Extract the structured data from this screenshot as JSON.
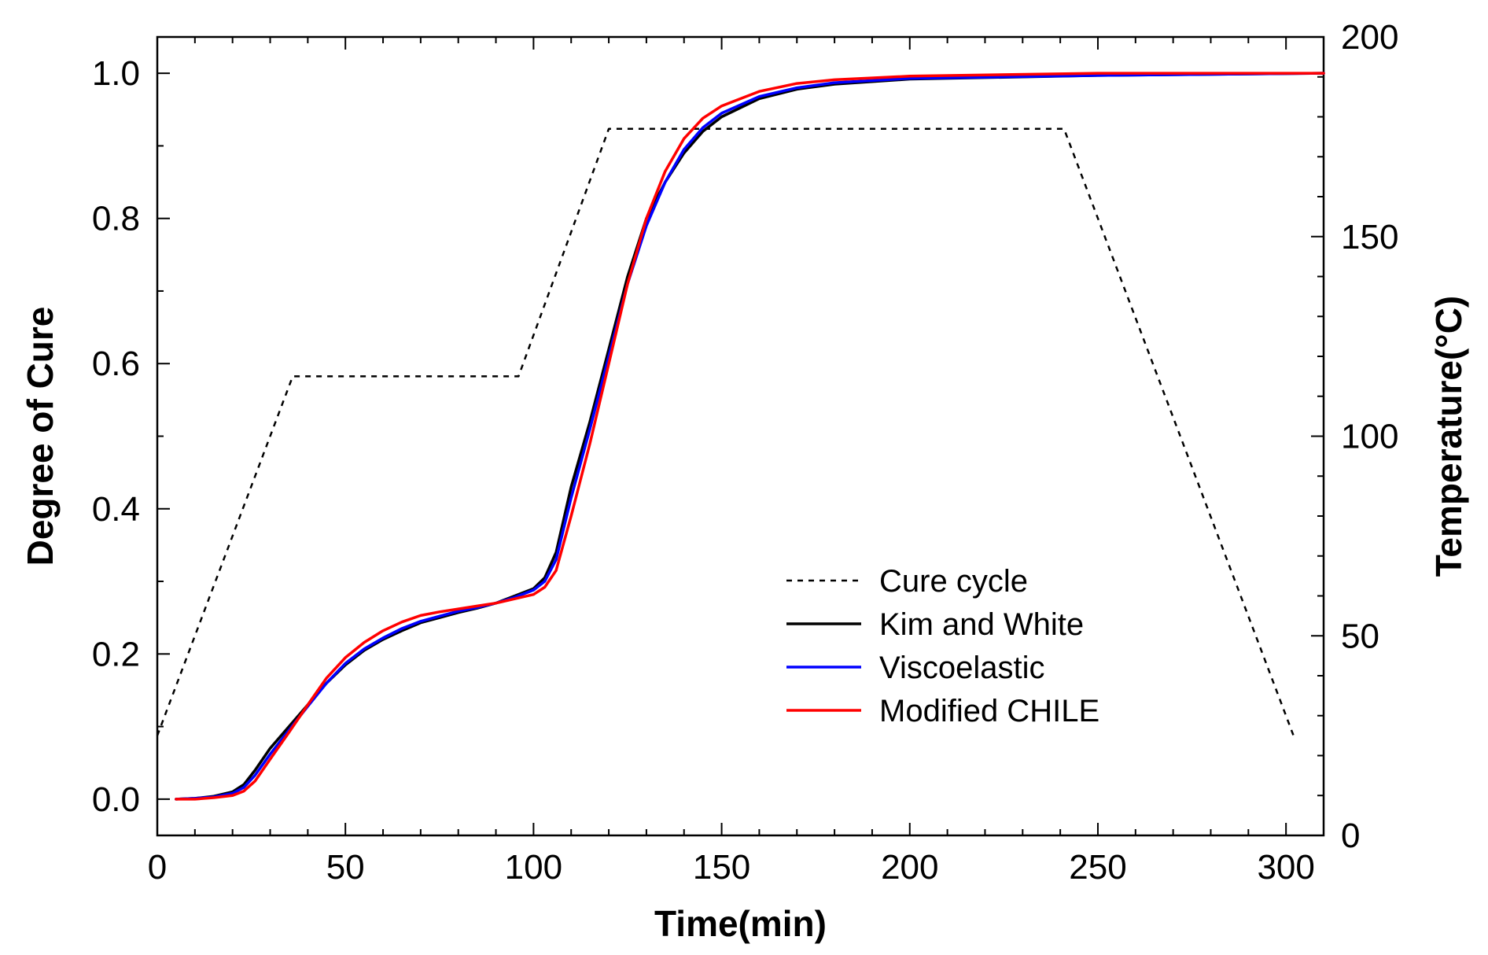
{
  "chart_data": {
    "type": "line",
    "title": "",
    "xlabel": "Time(min)",
    "ylabel": "Degree of Cure",
    "y2label": "Temperature(°C)",
    "xlim": [
      0,
      310
    ],
    "ylim": [
      -0.05,
      1.05
    ],
    "y2lim": [
      0,
      200
    ],
    "xticks": [
      0,
      50,
      100,
      150,
      200,
      250,
      300
    ],
    "xtick_labels": [
      "0",
      "50",
      "100",
      "150",
      "200",
      "250",
      "300"
    ],
    "yticks": [
      0.0,
      0.2,
      0.4,
      0.6,
      0.8,
      1.0
    ],
    "ytick_labels": [
      "0.0",
      "0.2",
      "0.4",
      "0.6",
      "0.8",
      "1.0"
    ],
    "y2ticks": [
      0,
      50,
      100,
      150,
      200
    ],
    "y2tick_labels": [
      "0",
      "50",
      "100",
      "150",
      "200"
    ],
    "grid": false,
    "legend_position": "lower-right",
    "series": [
      {
        "name": "Cure cycle",
        "axis": "right",
        "color": "#000000",
        "style": "dotted",
        "x": [
          0,
          36,
          96,
          120,
          241,
          302
        ],
        "y": [
          25,
          115,
          115,
          177,
          177,
          25
        ]
      },
      {
        "name": "Kim and White",
        "axis": "left",
        "color": "#000000",
        "style": "solid",
        "x": [
          5,
          10,
          15,
          20,
          23,
          26,
          30,
          35,
          40,
          45,
          50,
          55,
          60,
          65,
          70,
          75,
          80,
          85,
          90,
          95,
          100,
          103,
          106,
          110,
          115,
          120,
          125,
          130,
          135,
          140,
          145,
          150,
          160,
          170,
          180,
          200,
          250,
          310
        ],
        "y": [
          0.0,
          0.001,
          0.004,
          0.01,
          0.02,
          0.04,
          0.07,
          0.1,
          0.13,
          0.16,
          0.185,
          0.205,
          0.22,
          0.232,
          0.243,
          0.25,
          0.257,
          0.263,
          0.27,
          0.28,
          0.29,
          0.305,
          0.34,
          0.43,
          0.52,
          0.62,
          0.72,
          0.8,
          0.85,
          0.89,
          0.92,
          0.94,
          0.965,
          0.978,
          0.985,
          0.992,
          0.997,
          1.0
        ]
      },
      {
        "name": "Viscoelastic",
        "axis": "left",
        "color": "#0000ff",
        "style": "solid",
        "x": [
          5,
          10,
          15,
          20,
          23,
          26,
          30,
          35,
          40,
          45,
          50,
          55,
          60,
          65,
          70,
          75,
          80,
          85,
          90,
          95,
          100,
          103,
          106,
          110,
          115,
          120,
          125,
          130,
          135,
          140,
          145,
          150,
          160,
          170,
          180,
          200,
          250,
          310
        ],
        "y": [
          0.0,
          0.001,
          0.003,
          0.008,
          0.016,
          0.033,
          0.062,
          0.095,
          0.128,
          0.16,
          0.187,
          0.207,
          0.222,
          0.235,
          0.245,
          0.252,
          0.259,
          0.264,
          0.27,
          0.278,
          0.288,
          0.3,
          0.33,
          0.415,
          0.51,
          0.61,
          0.71,
          0.79,
          0.85,
          0.895,
          0.925,
          0.945,
          0.968,
          0.98,
          0.987,
          0.993,
          0.997,
          1.0
        ]
      },
      {
        "name": "Modified CHILE",
        "axis": "left",
        "color": "#ff0000",
        "style": "solid",
        "x": [
          5,
          10,
          15,
          20,
          23,
          26,
          30,
          35,
          40,
          45,
          50,
          55,
          60,
          65,
          70,
          75,
          80,
          85,
          90,
          95,
          100,
          103,
          106,
          110,
          115,
          120,
          125,
          130,
          135,
          140,
          145,
          150,
          160,
          170,
          180,
          200,
          250,
          310
        ],
        "y": [
          0.0,
          0.0,
          0.002,
          0.005,
          0.011,
          0.025,
          0.055,
          0.092,
          0.13,
          0.167,
          0.195,
          0.216,
          0.232,
          0.244,
          0.253,
          0.258,
          0.262,
          0.266,
          0.27,
          0.276,
          0.282,
          0.292,
          0.315,
          0.39,
          0.49,
          0.6,
          0.71,
          0.8,
          0.865,
          0.91,
          0.938,
          0.955,
          0.975,
          0.986,
          0.991,
          0.996,
          1.0,
          1.0
        ]
      }
    ]
  }
}
